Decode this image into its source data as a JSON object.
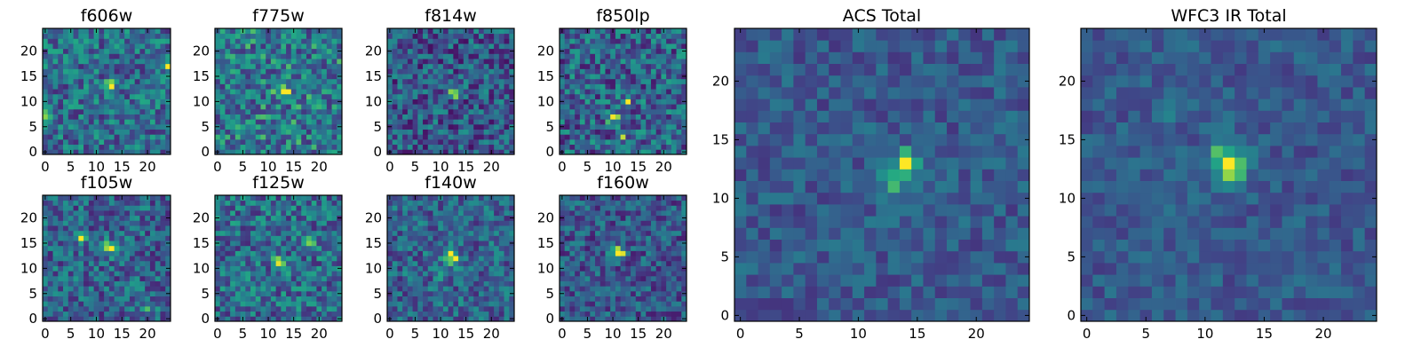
{
  "chart_data": [
    {
      "id": "f606w",
      "type": "heatmap",
      "title": "f606w",
      "grid": 24,
      "colormap": "viridis",
      "xticks": [
        0,
        5,
        10,
        15,
        20
      ],
      "yticks": [
        0,
        5,
        10,
        15,
        20
      ],
      "xlim": [
        -0.5,
        24.5
      ],
      "ylim": [
        -0.5,
        24.5
      ],
      "seed": 11,
      "base": 0.45,
      "noise": 0.3,
      "peaks": [
        {
          "x": 13,
          "y": 13,
          "amp": 0.45,
          "sigma": 0.8
        },
        {
          "x": 24,
          "y": 17,
          "amp": 0.4,
          "sigma": 0.6
        },
        {
          "x": 0,
          "y": 7,
          "amp": 0.35,
          "sigma": 0.6
        }
      ]
    },
    {
      "id": "f775w",
      "type": "heatmap",
      "title": "f775w",
      "grid": 24,
      "colormap": "viridis",
      "xticks": [
        0,
        5,
        10,
        15,
        20
      ],
      "yticks": [
        0,
        5,
        10,
        15,
        20
      ],
      "xlim": [
        -0.5,
        24.5
      ],
      "ylim": [
        -0.5,
        24.5
      ],
      "seed": 23,
      "base": 0.5,
      "noise": 0.32,
      "peaks": [
        {
          "x": 13,
          "y": 12,
          "amp": 0.5,
          "sigma": 1.0
        }
      ]
    },
    {
      "id": "f814w",
      "type": "heatmap",
      "title": "f814w",
      "grid": 24,
      "colormap": "viridis",
      "xticks": [
        0,
        5,
        10,
        15,
        20
      ],
      "yticks": [
        0,
        5,
        10,
        15,
        20
      ],
      "xlim": [
        -0.5,
        24.5
      ],
      "ylim": [
        -0.5,
        24.5
      ],
      "seed": 37,
      "base": 0.35,
      "noise": 0.3,
      "peaks": [
        {
          "x": 13,
          "y": 12,
          "amp": 0.6,
          "sigma": 0.8
        }
      ]
    },
    {
      "id": "f850lp",
      "type": "heatmap",
      "title": "f850lp",
      "grid": 24,
      "colormap": "viridis",
      "xticks": [
        0,
        5,
        10,
        15,
        20
      ],
      "yticks": [
        0,
        5,
        10,
        15,
        20
      ],
      "xlim": [
        -0.5,
        24.5
      ],
      "ylim": [
        -0.5,
        24.5
      ],
      "seed": 41,
      "base": 0.4,
      "noise": 0.32,
      "peaks": [
        {
          "x": 10,
          "y": 7,
          "amp": 0.45,
          "sigma": 0.8
        },
        {
          "x": 13,
          "y": 10,
          "amp": 0.4,
          "sigma": 0.6
        },
        {
          "x": 12,
          "y": 3,
          "amp": 0.35,
          "sigma": 0.6
        }
      ]
    },
    {
      "id": "f105w",
      "type": "heatmap",
      "title": "f105w",
      "grid": 24,
      "colormap": "viridis",
      "xticks": [
        0,
        5,
        10,
        15,
        20
      ],
      "yticks": [
        0,
        5,
        10,
        15,
        20
      ],
      "xlim": [
        -0.5,
        24.5
      ],
      "ylim": [
        -0.5,
        24.5
      ],
      "seed": 53,
      "base": 0.4,
      "noise": 0.28,
      "peaks": [
        {
          "x": 13,
          "y": 14,
          "amp": 0.5,
          "sigma": 1.0
        },
        {
          "x": 7,
          "y": 16,
          "amp": 0.45,
          "sigma": 0.6
        },
        {
          "x": 20,
          "y": 2,
          "amp": 0.4,
          "sigma": 0.8
        }
      ]
    },
    {
      "id": "f125w",
      "type": "heatmap",
      "title": "f125w",
      "grid": 24,
      "colormap": "viridis",
      "xticks": [
        0,
        5,
        10,
        15,
        20
      ],
      "yticks": [
        0,
        5,
        10,
        15,
        20
      ],
      "xlim": [
        -0.5,
        24.5
      ],
      "ylim": [
        -0.5,
        24.5
      ],
      "seed": 67,
      "base": 0.45,
      "noise": 0.3,
      "peaks": [
        {
          "x": 18,
          "y": 15,
          "amp": 0.5,
          "sigma": 0.7
        },
        {
          "x": 12,
          "y": 11,
          "amp": 0.3,
          "sigma": 1.0
        }
      ]
    },
    {
      "id": "f140w",
      "type": "heatmap",
      "title": "f140w",
      "grid": 24,
      "colormap": "viridis",
      "xticks": [
        0,
        5,
        10,
        15,
        20
      ],
      "yticks": [
        0,
        5,
        10,
        15,
        20
      ],
      "xlim": [
        -0.5,
        24.5
      ],
      "ylim": [
        -0.5,
        24.5
      ],
      "seed": 79,
      "base": 0.4,
      "noise": 0.26,
      "peaks": [
        {
          "x": 12,
          "y": 12,
          "amp": 0.55,
          "sigma": 1.2
        },
        {
          "x": 10,
          "y": 8,
          "amp": 0.4,
          "sigma": 0.7
        }
      ]
    },
    {
      "id": "f160w",
      "type": "heatmap",
      "title": "f160w",
      "grid": 24,
      "colormap": "viridis",
      "xticks": [
        0,
        5,
        10,
        15,
        20
      ],
      "yticks": [
        0,
        5,
        10,
        15,
        20
      ],
      "xlim": [
        -0.5,
        24.5
      ],
      "ylim": [
        -0.5,
        24.5
      ],
      "seed": 83,
      "base": 0.35,
      "noise": 0.25,
      "peaks": [
        {
          "x": 11,
          "y": 13,
          "amp": 0.65,
          "sigma": 1.0
        }
      ]
    },
    {
      "id": "acs-total",
      "type": "heatmap",
      "title": "ACS Total",
      "grid": 24,
      "colormap": "viridis",
      "xticks": [
        0,
        5,
        10,
        15,
        20
      ],
      "yticks": [
        0,
        5,
        10,
        15,
        20
      ],
      "xlim": [
        -0.5,
        24.5
      ],
      "ylim": [
        -0.5,
        24.5
      ],
      "seed": 97,
      "base": 0.35,
      "noise": 0.16,
      "peaks": [
        {
          "x": 14,
          "y": 13,
          "amp": 0.65,
          "sigma": 0.8
        },
        {
          "x": 13,
          "y": 11,
          "amp": 0.35,
          "sigma": 1.0
        }
      ]
    },
    {
      "id": "wfc3-ir-total",
      "type": "heatmap",
      "title": "WFC3 IR Total",
      "grid": 24,
      "colormap": "viridis",
      "xticks": [
        0,
        5,
        10,
        15,
        20
      ],
      "yticks": [
        0,
        5,
        10,
        15,
        20
      ],
      "xlim": [
        -0.5,
        24.5
      ],
      "ylim": [
        -0.5,
        24.5
      ],
      "seed": 101,
      "base": 0.35,
      "noise": 0.14,
      "peaks": [
        {
          "x": 12,
          "y": 13,
          "amp": 0.7,
          "sigma": 1.2
        },
        {
          "x": 7,
          "y": 17,
          "amp": 0.3,
          "sigma": 0.6
        }
      ]
    }
  ]
}
